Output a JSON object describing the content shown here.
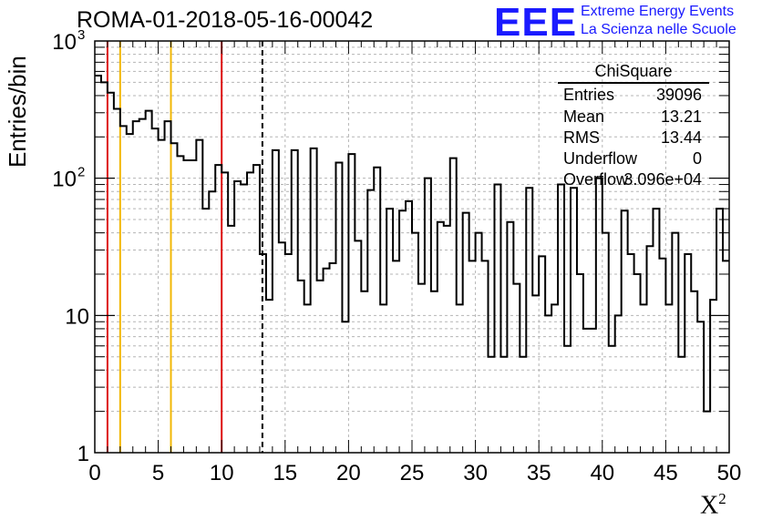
{
  "header": {
    "run_title": "ROMA-01-2018-05-16-00042",
    "logo_mark": "EEE",
    "logo_line1": "Extreme Energy Events",
    "logo_line2": "La Scienza nelle Scuole"
  },
  "stats": {
    "title": "ChiSquare",
    "rows": [
      {
        "name": "Entries",
        "value": "39096"
      },
      {
        "name": "Mean",
        "value": "13.21"
      },
      {
        "name": "RMS",
        "value": "13.44"
      },
      {
        "name": "Underflow",
        "value": "0"
      },
      {
        "name": "Overflow",
        "value": "3.096e+04"
      }
    ]
  },
  "colors": {
    "red_line": "#dd1111",
    "yellow_line": "#f2b705",
    "histogram": "#000000",
    "grid": "#b5b5b5",
    "logo": "#1a1aff"
  },
  "chart_data": {
    "type": "histogram",
    "xlabel": "X",
    "xlabel_superscript": "2",
    "ylabel": "Entries/bin",
    "xlim": [
      0,
      50
    ],
    "ylim": [
      1,
      1000
    ],
    "yscale": "log",
    "grid": true,
    "bin_width": 0.5,
    "x_ticks": [
      "0",
      "5",
      "10",
      "15",
      "20",
      "25",
      "30",
      "35",
      "40",
      "45",
      "50"
    ],
    "y_ticks": [
      {
        "value": 1,
        "label": "1",
        "exp": ""
      },
      {
        "value": 10,
        "label": "10",
        "exp": ""
      },
      {
        "value": 100,
        "label": "10",
        "exp": "2"
      },
      {
        "value": 1000,
        "label": "10",
        "exp": "3"
      }
    ],
    "values": [
      560,
      500,
      420,
      320,
      240,
      210,
      260,
      270,
      310,
      230,
      190,
      260,
      180,
      145,
      135,
      135,
      190,
      60,
      80,
      125,
      110,
      45,
      95,
      90,
      110,
      125,
      28,
      13,
      160,
      34,
      28,
      160,
      18,
      12,
      165,
      18,
      22,
      24,
      130,
      9,
      150,
      35,
      15,
      82,
      120,
      12,
      60,
      25,
      58,
      68,
      40,
      17,
      100,
      15,
      48,
      45,
      140,
      12,
      56,
      25,
      40,
      25,
      5,
      90,
      5,
      48,
      17,
      5,
      85,
      14,
      27,
      10,
      12,
      90,
      6,
      85,
      20,
      8,
      8,
      100,
      40,
      6,
      10,
      58,
      28,
      20,
      12,
      32,
      60,
      26,
      12,
      40,
      5,
      28,
      15,
      9,
      2,
      13,
      60,
      25
    ],
    "vertical_lines": [
      {
        "x": 1,
        "color": "red"
      },
      {
        "x": 10,
        "color": "red"
      },
      {
        "x": 2,
        "color": "yellow"
      },
      {
        "x": 6,
        "color": "yellow"
      },
      {
        "x": 13.21,
        "color": "black-dashed"
      }
    ]
  }
}
